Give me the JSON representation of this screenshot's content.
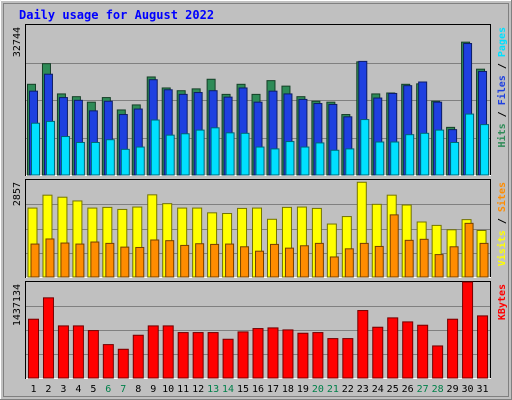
{
  "title": "Daily usage for August 2022",
  "colors": {
    "background": "#c0c0c0",
    "plot_bg": "#c0c0c0",
    "hits": "#2e8b57",
    "files": "#1e40e0",
    "pages": "#00e0ff",
    "visits": "#ffff00",
    "sites": "#ff8c00",
    "kbytes": "#ff0000",
    "weekend_day": "#00804a",
    "weekday": "#000000",
    "title": "#0000ff"
  },
  "chart_data": [
    {
      "type": "bar",
      "panel": "hits-files-pages",
      "scale_max_label": "32744",
      "ylim": [
        0,
        32744
      ],
      "categories": [
        "1",
        "2",
        "3",
        "4",
        "5",
        "6",
        "7",
        "8",
        "9",
        "10",
        "11",
        "12",
        "13",
        "14",
        "15",
        "16",
        "17",
        "18",
        "19",
        "20",
        "21",
        "22",
        "23",
        "24",
        "25",
        "26",
        "27",
        "28",
        "29",
        "30",
        "31"
      ],
      "legend": [
        {
          "text": "Hits",
          "color": "#2e8b57"
        },
        {
          "text": " / ",
          "color": "#000000"
        },
        {
          "text": "Files",
          "color": "#1e40e0"
        },
        {
          "text": " / ",
          "color": "#000000"
        },
        {
          "text": "Pages",
          "color": "#00e0ff"
        }
      ],
      "series": [
        {
          "name": "Hits",
          "values": [
            19800,
            24300,
            17700,
            17100,
            15900,
            16900,
            14200,
            15300,
            21400,
            19000,
            18400,
            18800,
            20900,
            17600,
            19800,
            17600,
            20600,
            19400,
            17100,
            16100,
            15900,
            13200,
            24700,
            17700,
            17900,
            19800,
            19900,
            16100,
            10400,
            29000,
            23100
          ]
        },
        {
          "name": "Files",
          "values": [
            18300,
            22000,
            16900,
            16300,
            14000,
            16100,
            13200,
            14400,
            20800,
            18600,
            17600,
            18000,
            18400,
            17000,
            19000,
            15900,
            18300,
            17700,
            16500,
            15600,
            15400,
            12700,
            24800,
            16800,
            17800,
            19500,
            20300,
            15900,
            9900,
            28700,
            22600
          ]
        },
        {
          "name": "Pages",
          "values": [
            11300,
            11700,
            8400,
            7100,
            7100,
            7700,
            5600,
            6100,
            12000,
            8700,
            9000,
            9800,
            10300,
            9200,
            9100,
            6100,
            5700,
            7300,
            6100,
            7000,
            5400,
            5700,
            12100,
            7200,
            7200,
            8800,
            9100,
            9800,
            7100,
            13300,
            11000
          ]
        }
      ]
    },
    {
      "type": "bar",
      "panel": "visits-sites",
      "scale_max_label": "2857",
      "ylim": [
        0,
        2857
      ],
      "categories": [
        "1",
        "2",
        "3",
        "4",
        "5",
        "6",
        "7",
        "8",
        "9",
        "10",
        "11",
        "12",
        "13",
        "14",
        "15",
        "16",
        "17",
        "18",
        "19",
        "20",
        "21",
        "22",
        "23",
        "24",
        "25",
        "26",
        "27",
        "28",
        "29",
        "30",
        "31"
      ],
      "legend": [
        {
          "text": "Visits",
          "color": "#ffff00"
        },
        {
          "text": " / ",
          "color": "#000000"
        },
        {
          "text": "Sites",
          "color": "#ff8c00"
        }
      ],
      "series": [
        {
          "name": "Visits",
          "values": [
            2030,
            2410,
            2350,
            2240,
            2030,
            2050,
            1990,
            2060,
            2420,
            2160,
            2030,
            2030,
            1890,
            1870,
            2020,
            2030,
            1700,
            2050,
            2060,
            2020,
            1560,
            1780,
            2790,
            2140,
            2410,
            2120,
            1620,
            1520,
            1390,
            1690,
            1370
          ]
        },
        {
          "name": "Sites",
          "values": [
            970,
            1120,
            1000,
            970,
            1030,
            990,
            880,
            870,
            1090,
            1070,
            930,
            980,
            960,
            970,
            890,
            760,
            960,
            850,
            920,
            990,
            590,
            830,
            990,
            900,
            1830,
            1080,
            1110,
            660,
            890,
            1580,
            990
          ]
        }
      ]
    },
    {
      "type": "bar",
      "panel": "kbytes",
      "scale_max_label": "1437134",
      "ylim": [
        0,
        1437134
      ],
      "categories": [
        "1",
        "2",
        "3",
        "4",
        "5",
        "6",
        "7",
        "8",
        "9",
        "10",
        "11",
        "12",
        "13",
        "14",
        "15",
        "16",
        "17",
        "18",
        "19",
        "20",
        "21",
        "22",
        "23",
        "24",
        "25",
        "26",
        "27",
        "28",
        "29",
        "30",
        "31"
      ],
      "legend": [
        {
          "text": "KBytes",
          "color": "#ff0000"
        }
      ],
      "series": [
        {
          "name": "KBytes",
          "values": [
            880000,
            1200000,
            780000,
            780000,
            710000,
            500000,
            430000,
            640000,
            780000,
            780000,
            680000,
            680000,
            680000,
            580000,
            690000,
            740000,
            750000,
            720000,
            670000,
            680000,
            590000,
            590000,
            1010000,
            760000,
            900000,
            840000,
            790000,
            480000,
            880000,
            1437134,
            930000
          ]
        }
      ]
    }
  ],
  "weekend_days": [
    "6",
    "7",
    "13",
    "14",
    "20",
    "21",
    "27",
    "28"
  ]
}
